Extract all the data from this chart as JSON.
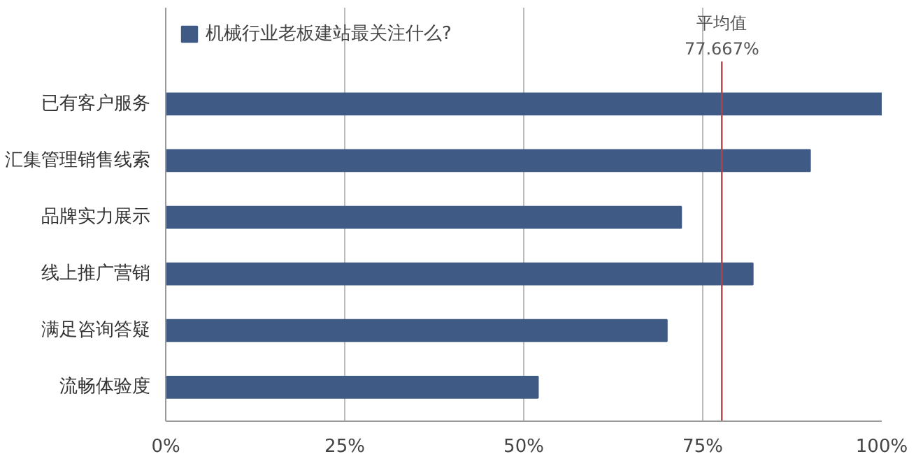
{
  "chart_data": {
    "type": "bar",
    "orientation": "horizontal",
    "categories": [
      "已有客户服务",
      "汇集管理销售线索",
      "品牌实力展示",
      "线上推广营销",
      "满足咨询答疑",
      "流畅体验度"
    ],
    "series": [
      {
        "name": "机械行业老板建站最关注什么?",
        "color": "#3f5a84",
        "values": [
          100,
          90,
          72,
          82,
          70,
          52
        ]
      }
    ],
    "xlim": [
      0,
      100
    ],
    "xticks": [
      {
        "value": 0,
        "label": "0%"
      },
      {
        "value": 25,
        "label": "25%"
      },
      {
        "value": 50,
        "label": "50%"
      },
      {
        "value": 75,
        "label": "75%"
      },
      {
        "value": 100,
        "label": "100%"
      }
    ],
    "grid": "x",
    "legend": "top left",
    "ref_lines": [
      {
        "axis": "x",
        "value": 77.667,
        "label": "平均值\n77.667%",
        "color": "#b0434b"
      }
    ]
  }
}
